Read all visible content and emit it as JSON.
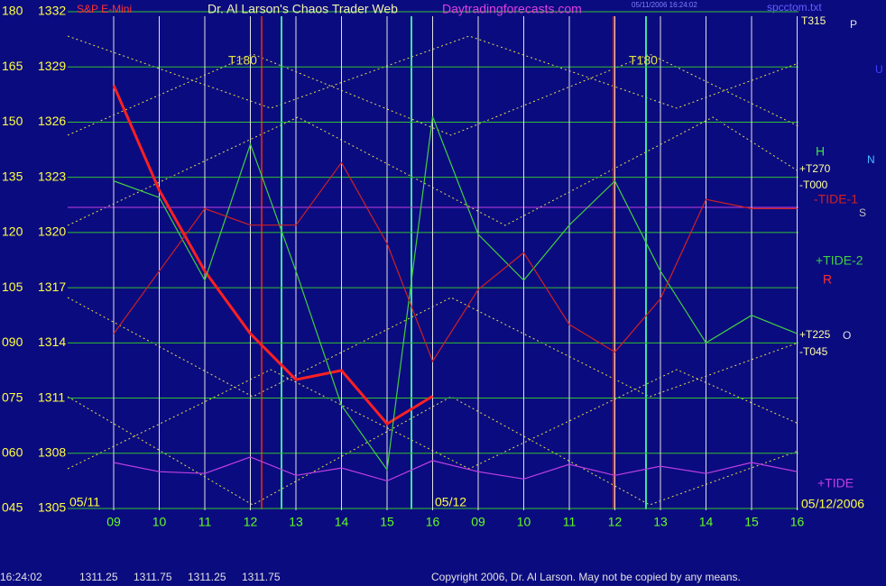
{
  "chart_data": {
    "type": "line",
    "title": "Dr. Al Larson's Chaos Trader Web",
    "site": "Daytradingforecasts.com",
    "file": "spcctom.txt",
    "stamp": "05/11/2006 16:24:02",
    "categories": [
      "09",
      "10",
      "11",
      "12",
      "13",
      "14",
      "15",
      "16",
      "09",
      "10",
      "11",
      "12",
      "13",
      "14",
      "15",
      "16"
    ],
    "day_labels": [
      "05/11",
      "05/12",
      "05/12/2006"
    ],
    "ylim": [
      1305,
      1332
    ],
    "yticks": [
      1332,
      1329,
      1326,
      1323,
      1320,
      1317,
      1314,
      1311,
      1308,
      1305
    ],
    "y2lim": [
      45,
      180
    ],
    "y2ticks": [
      180,
      165,
      150,
      135,
      120,
      105,
      {
        "value": 90,
        "label": "090"
      },
      {
        "value": 75,
        "label": "075"
      },
      {
        "value": 60,
        "label": "060"
      },
      {
        "value": 45,
        "label": "045"
      }
    ],
    "grid": true,
    "series": [
      {
        "name": "S&P E-Mini",
        "color": "#ff2020",
        "values": [
          1328.0,
          1322.3,
          1317.9,
          1314.5,
          1312.0,
          1312.5,
          1309.6,
          1311.1,
          null,
          null,
          null,
          null,
          null,
          null,
          null,
          null
        ]
      },
      {
        "name": "+TIDE-2",
        "color": "#40d040",
        "values": [
          1322.8,
          1321.9,
          1317.4,
          1324.8,
          1317.9,
          1310.6,
          1307.1,
          1326.3,
          1319.9,
          1317.4,
          1320.4,
          1322.8,
          1317.9,
          1314.0,
          1315.5,
          1314.5
        ]
      },
      {
        "name": "-TIDE-1",
        "color": "#d02020",
        "values": [
          1314.5,
          1317.9,
          1321.3,
          1320.4,
          1320.4,
          1323.8,
          1319.4,
          1313.0,
          1316.9,
          1318.9,
          1315.0,
          1313.5,
          1316.4,
          1321.8,
          1321.3,
          1321.3
        ]
      },
      {
        "name": "+TIDE",
        "color": "#c040e0",
        "values": [
          1307.5,
          1307.0,
          1306.9,
          1307.8,
          1306.8,
          1307.2,
          1306.5,
          1307.6,
          1307.0,
          1306.6,
          1307.4,
          1306.8,
          1307.3,
          1306.9,
          1307.5,
          1307.0
        ]
      }
    ],
    "annotations": [
      "T180",
      "T180",
      "T315",
      "+T270",
      "-T000",
      "+T225",
      "-T045",
      "H",
      "R",
      "P",
      "O",
      "N",
      "S",
      "U"
    ],
    "footer": {
      "time": "16:24:02",
      "quote": [
        1311.25,
        1311.75,
        1311.25,
        1311.75
      ],
      "copyright": "Copyright 2006, Dr. Al Larson. May not be copied by any means."
    }
  }
}
